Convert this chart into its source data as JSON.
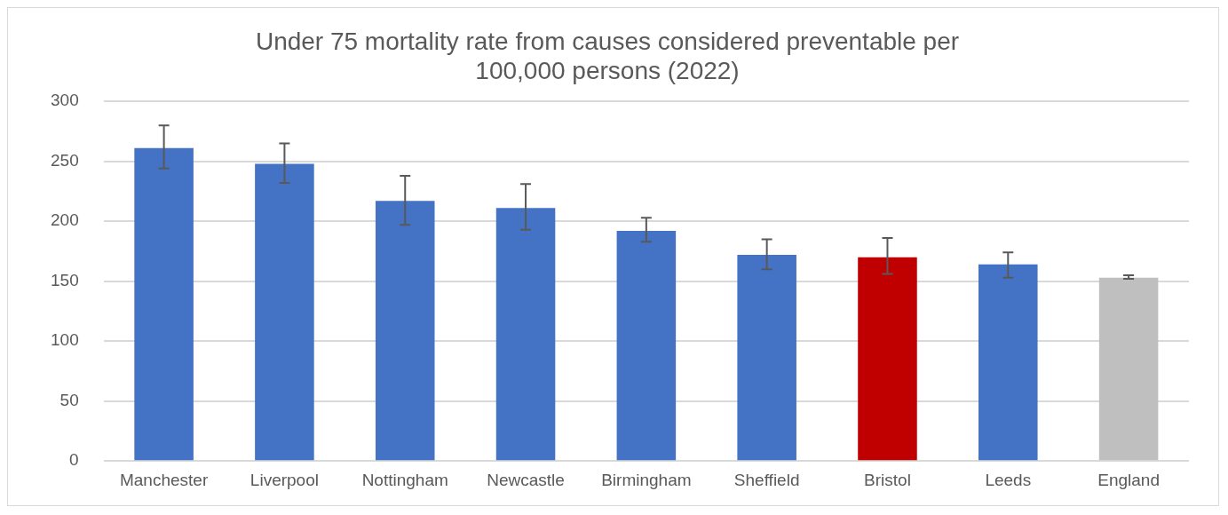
{
  "chart_data": {
    "type": "bar",
    "title": [
      "Under 75 mortality rate from causes considered preventable per",
      "100,000 persons (2022)"
    ],
    "categories": [
      "Manchester",
      "Liverpool",
      "Nottingham",
      "Newcastle",
      "Birmingham",
      "Sheffield",
      "Bristol",
      "Leeds",
      "England"
    ],
    "values": [
      261,
      248,
      217,
      211,
      192,
      172,
      170,
      164,
      153
    ],
    "colors": [
      "#4472c4",
      "#4472c4",
      "#4472c4",
      "#4472c4",
      "#4472c4",
      "#4472c4",
      "#c00000",
      "#4472c4",
      "#bfbfbf"
    ],
    "errors": [
      [
        244,
        280
      ],
      [
        232,
        265
      ],
      [
        197,
        238
      ],
      [
        193,
        231
      ],
      [
        183,
        203
      ],
      [
        160,
        185
      ],
      [
        156,
        186
      ],
      [
        153,
        174
      ],
      [
        152,
        155
      ]
    ],
    "ylim": [
      0,
      300
    ],
    "yticks": [
      0,
      50,
      100,
      150,
      200,
      250,
      300
    ],
    "grid": "y",
    "legend": false
  }
}
